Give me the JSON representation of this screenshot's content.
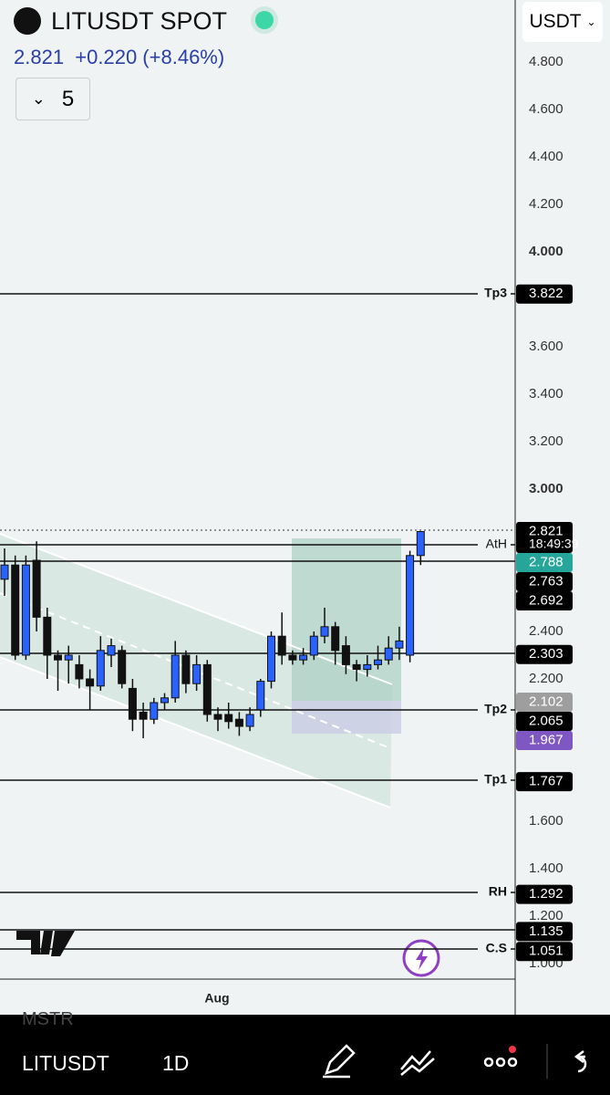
{
  "header": {
    "symbol": "LITUSDT SPOT",
    "price": "2.821",
    "change": "+0.220 (+8.46%)",
    "indicator_count": "5",
    "currency": "USDT"
  },
  "axis_ticks": [
    "4.800",
    "4.600",
    "4.400",
    "4.200",
    "4.000",
    "3.600",
    "3.400",
    "3.200",
    "3.000",
    "2.400",
    "2.200",
    "1.600",
    "1.400",
    "1.200",
    "1.000"
  ],
  "axis_bold": [
    "4.000",
    "3.000"
  ],
  "levels": [
    {
      "label": "Tp3"
    },
    {
      "label": "AtH"
    },
    {
      "label": "Tp2"
    },
    {
      "label": "Tp1"
    },
    {
      "label": "RH"
    },
    {
      "label": "C.S"
    }
  ],
  "badges": [
    {
      "price": "3.822"
    },
    {
      "price": "2.821",
      "timer": "18:49:39"
    },
    {
      "price": "2.788"
    },
    {
      "price": "2.763"
    },
    {
      "price": "2.692"
    },
    {
      "price": "2.303"
    },
    {
      "price": "2.102"
    },
    {
      "price": "2.065"
    },
    {
      "price": "1.967"
    },
    {
      "price": "1.767"
    },
    {
      "price": "1.292"
    },
    {
      "price": "1.135"
    },
    {
      "price": "1.051"
    }
  ],
  "candles": [
    [
      2.62,
      2.75,
      2.55,
      2.68
    ],
    [
      2.68,
      2.72,
      2.28,
      2.3
    ],
    [
      2.3,
      2.72,
      2.28,
      2.68
    ],
    [
      2.7,
      2.78,
      2.4,
      2.46
    ],
    [
      2.46,
      2.5,
      2.2,
      2.3
    ],
    [
      2.3,
      2.32,
      2.15,
      2.28
    ],
    [
      2.28,
      2.34,
      2.18,
      2.3
    ],
    [
      2.26,
      2.3,
      2.16,
      2.2
    ],
    [
      2.2,
      2.24,
      2.07,
      2.17
    ],
    [
      2.17,
      2.38,
      2.15,
      2.32
    ],
    [
      2.3,
      2.37,
      2.25,
      2.34
    ],
    [
      2.32,
      2.34,
      2.16,
      2.18
    ],
    [
      2.16,
      2.2,
      1.98,
      2.03
    ],
    [
      2.06,
      2.1,
      1.95,
      2.03
    ],
    [
      2.03,
      2.12,
      2.01,
      2.1
    ],
    [
      2.1,
      2.14,
      2.07,
      2.12
    ],
    [
      2.12,
      2.36,
      2.1,
      2.3
    ],
    [
      2.3,
      2.32,
      2.14,
      2.18
    ],
    [
      2.18,
      2.3,
      2.15,
      2.26
    ],
    [
      2.26,
      2.28,
      2.02,
      2.05
    ],
    [
      2.05,
      2.08,
      1.98,
      2.03
    ],
    [
      2.05,
      2.1,
      1.99,
      2.02
    ],
    [
      2.03,
      2.06,
      1.96,
      2.0
    ],
    [
      2.0,
      2.08,
      1.98,
      2.05
    ],
    [
      2.07,
      2.2,
      2.04,
      2.19
    ],
    [
      2.19,
      2.4,
      2.16,
      2.38
    ],
    [
      2.38,
      2.48,
      2.26,
      2.3
    ],
    [
      2.3,
      2.32,
      2.26,
      2.28
    ],
    [
      2.28,
      2.33,
      2.26,
      2.3
    ],
    [
      2.3,
      2.4,
      2.28,
      2.38
    ],
    [
      2.38,
      2.5,
      2.35,
      2.42
    ],
    [
      2.42,
      2.44,
      2.26,
      2.32
    ],
    [
      2.34,
      2.38,
      2.22,
      2.26
    ],
    [
      2.26,
      2.28,
      2.19,
      2.24
    ],
    [
      2.24,
      2.3,
      2.21,
      2.26
    ],
    [
      2.26,
      2.34,
      2.24,
      2.28
    ],
    [
      2.28,
      2.38,
      2.26,
      2.33
    ],
    [
      2.33,
      2.42,
      2.28,
      2.36
    ],
    [
      2.3,
      2.74,
      2.27,
      2.72
    ],
    [
      2.72,
      2.821,
      2.68,
      2.821
    ]
  ],
  "time_label": "Aug",
  "watchlist_prev": "MSTR",
  "toolbar": {
    "symbol": "LITUSDT",
    "interval": "1D"
  }
}
